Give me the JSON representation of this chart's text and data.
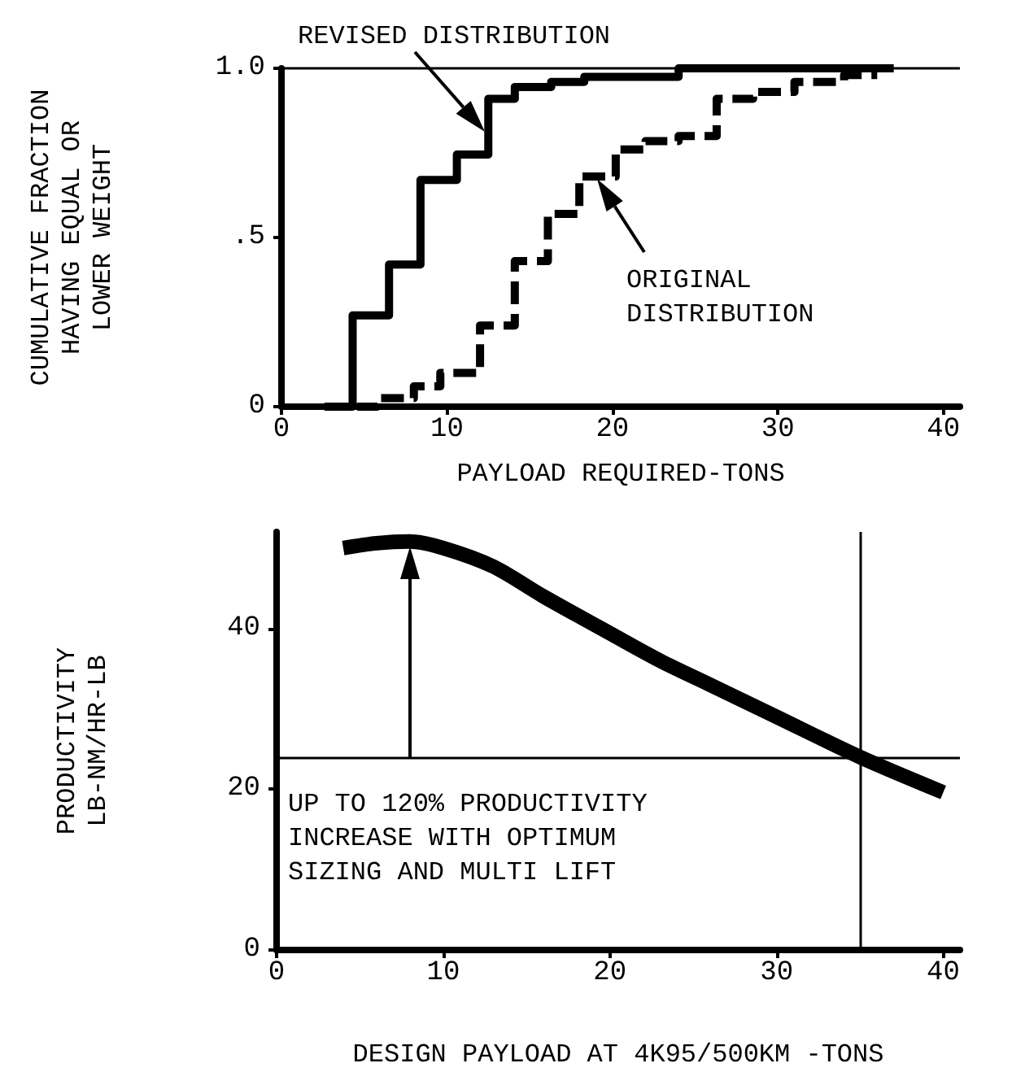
{
  "chart_data": [
    {
      "type": "step",
      "ylabel": "CUMULATIVE FRACTION\nHAVING EQUAL OR\nLOWER WEIGHT",
      "xlabel": "PAYLOAD REQUIRED-TONS",
      "annotations": [
        "REVISED DISTRIBUTION",
        "ORIGINAL\nDISTRIBUTION"
      ],
      "series": [
        {
          "color": "#000000",
          "line_style": "solid",
          "x": [
            3,
            4.3,
            6.5,
            8.4,
            10.6,
            12.5,
            14.1,
            16.3,
            18.3,
            24,
            37
          ],
          "values": [
            0,
            0.27,
            0.42,
            0.67,
            0.745,
            0.91,
            0.945,
            0.96,
            0.975,
            1.0,
            1.0
          ]
        },
        {
          "color": "#000000",
          "line_style": "dashed",
          "x": [
            2.6,
            5.8,
            8,
            9.6,
            12,
            14.1,
            16.1,
            18,
            20.2,
            22,
            24,
            26.3,
            28.5,
            31,
            34,
            36
          ],
          "values": [
            0,
            0.025,
            0.06,
            0.1,
            0.24,
            0.43,
            0.57,
            0.68,
            0.76,
            0.785,
            0.8,
            0.91,
            0.93,
            0.96,
            0.98,
            0.98
          ]
        }
      ],
      "ref_lines": [
        {
          "axis": "y",
          "value": 1.0
        }
      ],
      "xlim": [
        0,
        41
      ],
      "xticks": [
        0,
        10,
        20,
        30,
        40
      ],
      "ylim": [
        0,
        1.0
      ],
      "yticks": [
        0,
        {
          "value": 0.5,
          "label": ".5"
        },
        {
          "value": 1.0,
          "label": "1.0"
        }
      ],
      "grid": false
    },
    {
      "type": "line",
      "ylabel": "PRODUCTIVITY\nLB-NM/HR-LB",
      "xlabel": "DESIGN PAYLOAD AT 4K95/500KM -TONS",
      "annotations": [
        "UP TO 120% PRODUCTIVITY\nINCREASE WITH OPTIMUM\nSIZING AND MULTI LIFT"
      ],
      "series": [
        {
          "color": "#000000",
          "line_style": "solid",
          "x": [
            4,
            6,
            8,
            10,
            13,
            16,
            20,
            23,
            26,
            30,
            35,
            40
          ],
          "values": [
            50,
            50.6,
            50.8,
            50,
            47.7,
            44,
            39.4,
            36,
            33,
            29,
            24,
            19.6
          ]
        }
      ],
      "ref_lines": [
        {
          "axis": "y",
          "value": 24
        },
        {
          "axis": "x",
          "value": 35
        }
      ],
      "xlim": [
        0,
        41
      ],
      "xticks": [
        0,
        10,
        20,
        30,
        40
      ],
      "ylim": [
        0,
        52
      ],
      "yticks": [
        0,
        20,
        40
      ],
      "grid": false,
      "marker": "none"
    }
  ]
}
